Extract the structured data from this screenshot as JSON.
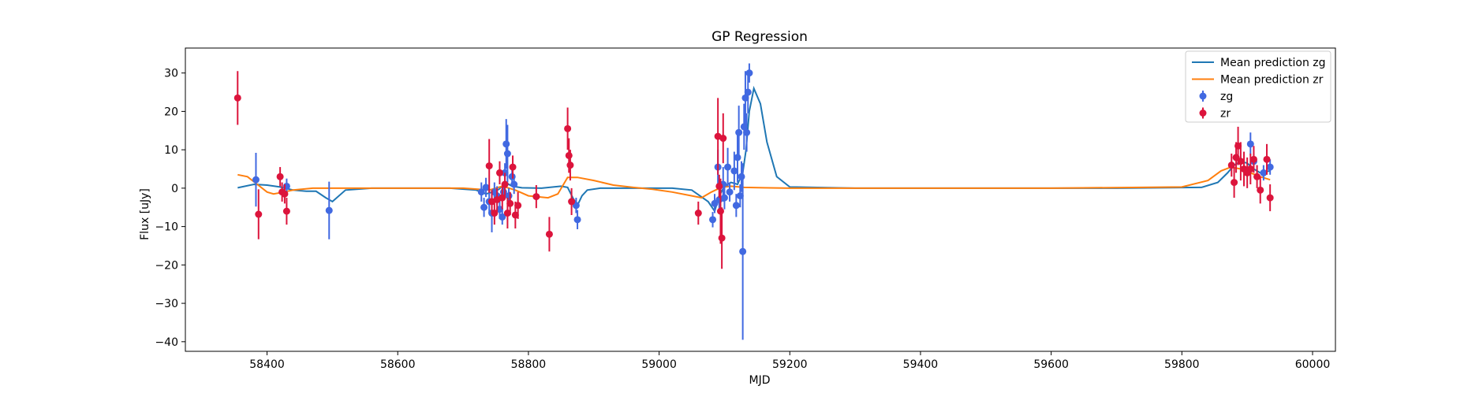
{
  "chart_data": {
    "type": "scatter",
    "title": "GP Regression",
    "xlabel": "MJD",
    "ylabel": "Flux [uJy]",
    "xlim": [
      58275,
      60035
    ],
    "ylim": [
      -42.5,
      36.5
    ],
    "xticks": [
      58400,
      58600,
      58800,
      59000,
      59200,
      59400,
      59600,
      59800,
      60000
    ],
    "yticks": [
      -40,
      -30,
      -20,
      -10,
      0,
      10,
      20,
      30
    ],
    "xtick_labels": [
      "58400",
      "58600",
      "58800",
      "59000",
      "59200",
      "59400",
      "59600",
      "59800",
      "60000"
    ],
    "ytick_labels": [
      "−40",
      "−30",
      "−20",
      "−10",
      "0",
      "10",
      "20",
      "30"
    ],
    "grid": false,
    "legend_position": "top-right",
    "legend": [
      {
        "label": "Mean prediction zg",
        "kind": "line",
        "color": "#1f77b4"
      },
      {
        "label": "Mean prediction zr",
        "kind": "line",
        "color": "#ff7f0e"
      },
      {
        "label": "zg",
        "kind": "errorbar",
        "color": "#4169e1"
      },
      {
        "label": "zr",
        "kind": "errorbar",
        "color": "#dc143c"
      }
    ],
    "series": [
      {
        "name": "Mean prediction zg",
        "kind": "line",
        "color": "#1f77b4",
        "x": [
          58355,
          58380,
          58400,
          58420,
          58440,
          58460,
          58475,
          58490,
          58500,
          58520,
          58560,
          58620,
          58680,
          58720,
          58735,
          58745,
          58755,
          58765,
          58775,
          58790,
          58820,
          58850,
          58860,
          58868,
          58875,
          58882,
          58890,
          58910,
          58960,
          59020,
          59050,
          59075,
          59085,
          59092,
          59100,
          59110,
          59120,
          59128,
          59133,
          59138,
          59145,
          59155,
          59165,
          59180,
          59200,
          59300,
          59500,
          59700,
          59830,
          59855,
          59870,
          59880,
          59890,
          59900,
          59910,
          59920,
          59935
        ],
        "y": [
          0.1,
          1.0,
          0.8,
          0.3,
          -0.5,
          -0.8,
          -0.8,
          -2.5,
          -3.5,
          -0.5,
          0,
          0,
          0,
          -0.5,
          -1.5,
          -1.0,
          -0.3,
          1.5,
          0.5,
          0.1,
          0,
          0.5,
          0.2,
          -2.5,
          -4.5,
          -2.0,
          -0.5,
          0,
          0,
          0,
          -0.5,
          -3.5,
          -6.0,
          -2.0,
          0.5,
          1.5,
          1.0,
          4.0,
          10.0,
          20.0,
          26.0,
          22.0,
          12.0,
          3.0,
          0.3,
          0,
          0,
          0,
          0.2,
          1.5,
          4.0,
          6.0,
          7.0,
          6.5,
          5.0,
          4.0,
          4.5
        ]
      },
      {
        "name": "Mean prediction zr",
        "kind": "line",
        "color": "#ff7f0e",
        "x": [
          58355,
          58370,
          58385,
          58400,
          58410,
          58420,
          58440,
          58470,
          58500,
          58550,
          58600,
          58650,
          58700,
          58740,
          58760,
          58780,
          58800,
          58830,
          58845,
          58860,
          58875,
          58900,
          58930,
          58960,
          58990,
          59020,
          59050,
          59065,
          59080,
          59095,
          59110,
          59130,
          59160,
          59200,
          59400,
          59600,
          59800,
          59840,
          59860,
          59875,
          59890,
          59905,
          59920,
          59935
        ],
        "y": [
          3.5,
          3.0,
          1.0,
          -1.0,
          -1.5,
          -1.2,
          -0.5,
          0,
          0,
          0,
          0,
          0,
          0,
          -0.5,
          0.5,
          -0.5,
          -2.0,
          -2.5,
          -1.5,
          2.8,
          2.8,
          2.0,
          0.8,
          0.2,
          -0.3,
          -1.0,
          -2.0,
          -2.5,
          -1.0,
          0.2,
          0.5,
          0.2,
          0.1,
          0,
          0,
          0,
          0.3,
          2.0,
          4.5,
          5.5,
          5.0,
          4.0,
          3.0,
          2.2
        ]
      },
      {
        "name": "zg",
        "kind": "errorbar",
        "color": "#4169e1",
        "x": [
          58383,
          58430,
          58495,
          58728,
          58732,
          58735,
          58740,
          58744,
          58748,
          58752,
          58756,
          58760,
          58762,
          58764,
          58766,
          58768,
          58770,
          58775,
          58778,
          58873,
          58875,
          59082,
          59085,
          59090,
          59092,
          59098,
          59100,
          59105,
          59108,
          59115,
          59118,
          59120,
          59122,
          59124,
          59126,
          59128,
          59130,
          59132,
          59134,
          59136,
          59138,
          59905,
          59910,
          59925,
          59935
        ],
        "y": [
          2.2,
          0.5,
          -5.8,
          -1.0,
          -5.0,
          0.2,
          -3.5,
          -6.5,
          -1.0,
          -2.0,
          -5.5,
          -7.5,
          -1.0,
          4.0,
          11.5,
          9.0,
          -2.0,
          3.0,
          1.0,
          -4.5,
          -8.2,
          -8.2,
          -4.0,
          5.5,
          -3.0,
          1.0,
          -2.5,
          5.5,
          -1.0,
          4.5,
          -4.5,
          8.0,
          14.5,
          -2.0,
          3.0,
          -16.5,
          16.0,
          23.5,
          14.5,
          25.0,
          30.0,
          11.5,
          7.0,
          4.0,
          5.5
        ],
        "yerr": [
          7.0,
          2.0,
          7.5,
          2.5,
          2.5,
          2.5,
          3.0,
          5.0,
          2.5,
          2.5,
          2.5,
          2.0,
          2.0,
          2.5,
          6.5,
          7.5,
          2.0,
          2.5,
          2.5,
          2.0,
          2.5,
          2.0,
          2.5,
          4.5,
          3.0,
          4.5,
          3.0,
          5.0,
          2.5,
          5.0,
          3.0,
          6.5,
          7.0,
          3.0,
          4.0,
          23.0,
          6.0,
          7.0,
          5.0,
          5.5,
          2.5,
          3.0,
          2.0,
          2.0,
          2.0
        ]
      },
      {
        "name": "zr",
        "kind": "errorbar",
        "color": "#dc143c",
        "x": [
          58355,
          58387,
          58420,
          58423,
          58427,
          58430,
          58740,
          58744,
          58748,
          58752,
          58756,
          58760,
          58764,
          58768,
          58772,
          58776,
          58780,
          58784,
          58812,
          58832,
          58860,
          58862,
          58864,
          58866,
          59060,
          59090,
          59092,
          59094,
          59096,
          59098,
          59876,
          59880,
          59883,
          59886,
          59890,
          59895,
          59900,
          59905,
          59910,
          59915,
          59920,
          59930,
          59935
        ],
        "y": [
          23.5,
          -6.8,
          3.0,
          -1.0,
          -1.5,
          -6.0,
          5.8,
          -3.5,
          -6.5,
          -3.0,
          4.0,
          -2.5,
          1.0,
          -6.5,
          -4.0,
          5.5,
          -7.0,
          -4.5,
          -2.2,
          -12.0,
          15.5,
          8.5,
          6.0,
          -3.5,
          -6.5,
          13.5,
          0.5,
          -6.0,
          -13.0,
          13.0,
          6.0,
          1.5,
          8.0,
          11.0,
          7.0,
          5.0,
          4.0,
          5.0,
          7.5,
          3.0,
          -0.5,
          7.5,
          -2.5
        ],
        "yerr": [
          7.0,
          6.5,
          2.5,
          2.5,
          2.5,
          3.5,
          7.0,
          3.0,
          3.0,
          3.0,
          3.0,
          3.0,
          3.0,
          4.0,
          3.0,
          3.0,
          3.5,
          3.5,
          3.0,
          4.5,
          5.5,
          4.5,
          4.0,
          3.5,
          3.0,
          10.0,
          3.0,
          8.5,
          8.0,
          6.5,
          3.0,
          4.0,
          4.0,
          5.0,
          5.0,
          4.5,
          4.0,
          4.0,
          3.5,
          3.0,
          3.5,
          4.0,
          3.5
        ]
      }
    ]
  }
}
